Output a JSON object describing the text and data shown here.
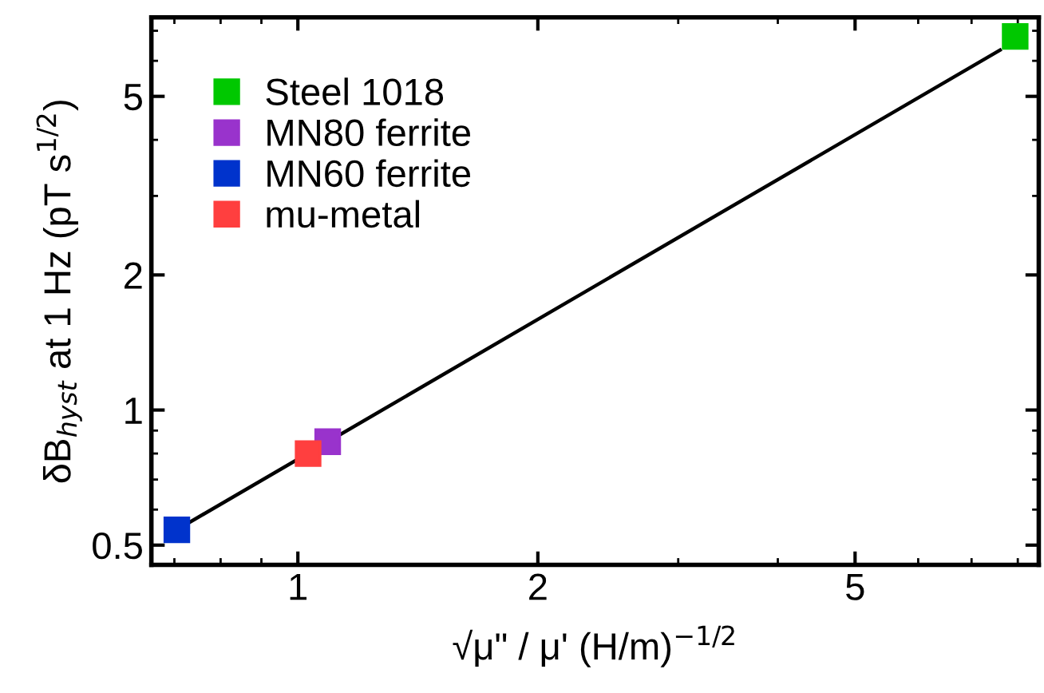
{
  "chart_data": {
    "type": "scatter",
    "xlabel": "√μ\" / μ' (H/m)$^{−1/2}$",
    "ylabel": "δB$_{hyst}$ at 1 Hz (pT s$^{1/2}$)",
    "log": "xy",
    "xlim": [
      0.655,
      8.5
    ],
    "ylim": [
      0.452,
      7.5
    ],
    "xticks": [
      1,
      2,
      5
    ],
    "yticks": [
      0.5,
      1,
      2,
      5
    ],
    "marker": "square",
    "legend": "top left",
    "grid": false,
    "series": [
      {
        "type": "line",
        "color": "#000000",
        "x": [
          0.73,
          7.6
        ],
        "values": [
          0.561,
          6.34
        ],
        "marker": "none",
        "line_style": "solid"
      },
      {
        "name": "Steel 1018",
        "color": "#00c800",
        "x": [
          7.94
        ],
        "values": [
          6.8
        ]
      },
      {
        "name": "MN80 ferrite",
        "color": "#9933cc",
        "x": [
          1.09
        ],
        "values": [
          0.85
        ]
      },
      {
        "name": "MN60 ferrite",
        "color": "#0033cc",
        "x": [
          0.705
        ],
        "values": [
          0.541
        ]
      },
      {
        "name": "mu-metal",
        "color": "#ff3f3f",
        "x": [
          1.03
        ],
        "values": [
          0.8
        ]
      }
    ]
  }
}
